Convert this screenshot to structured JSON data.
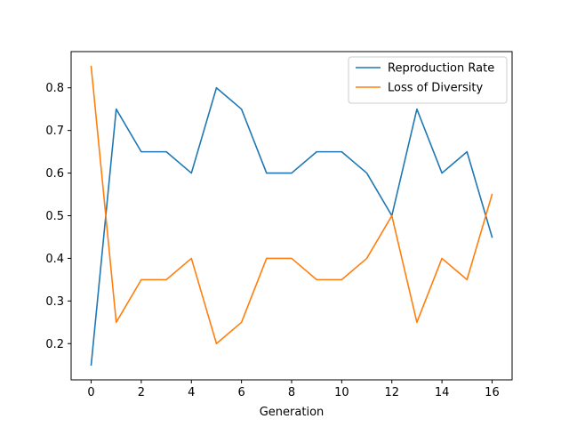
{
  "chart_data": {
    "type": "line",
    "title": "",
    "xlabel": "Generation",
    "ylabel": "",
    "x": [
      0,
      1,
      2,
      3,
      4,
      5,
      6,
      7,
      8,
      9,
      10,
      11,
      12,
      13,
      14,
      15,
      16
    ],
    "series": [
      {
        "name": "Reproduction Rate",
        "color": "#1f77b4",
        "values": [
          0.15,
          0.75,
          0.65,
          0.65,
          0.6,
          0.8,
          0.75,
          0.6,
          0.6,
          0.65,
          0.65,
          0.6,
          0.5,
          0.75,
          0.6,
          0.65,
          0.45
        ]
      },
      {
        "name": "Loss of Diversity",
        "color": "#ff7f0e",
        "values": [
          0.85,
          0.25,
          0.35,
          0.35,
          0.4,
          0.2,
          0.25,
          0.4,
          0.4,
          0.35,
          0.35,
          0.4,
          0.5,
          0.25,
          0.4,
          0.35,
          0.55
        ]
      }
    ],
    "xlim": [
      -0.8,
      16.8
    ],
    "ylim": [
      0.115,
      0.885
    ],
    "xticks": [
      "0",
      "2",
      "4",
      "6",
      "8",
      "10",
      "12",
      "14",
      "16"
    ],
    "yticks": [
      "0.2",
      "0.3",
      "0.4",
      "0.5",
      "0.6",
      "0.7",
      "0.8"
    ],
    "grid": false,
    "legend_position": "top-right"
  }
}
